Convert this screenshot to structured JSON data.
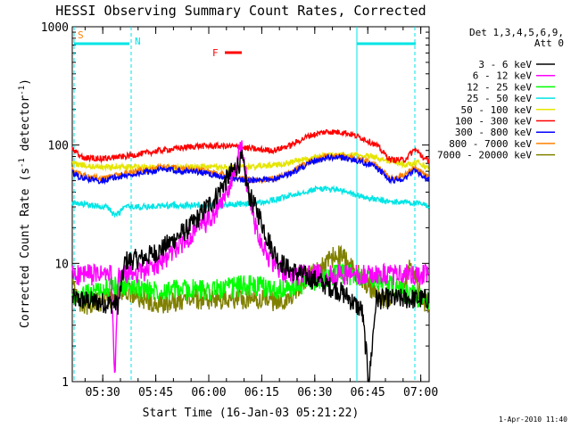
{
  "chart_data": {
    "type": "line",
    "title": "HESSI Observing Summary Count Rates, Corrected",
    "xlabel": "Start Time (16-Jan-03 05:21:22)",
    "ylabel_main": "Corrected Count Rate (s",
    "ylabel_sup1": "-1",
    "ylabel_mid": " detector",
    "ylabel_sup2": "-1",
    "ylabel_end": ")",
    "yscale": "log",
    "ylim": [
      1,
      1000
    ],
    "xlim_min": [
      0,
      101
    ],
    "x_tick_minutes": [
      8.63,
      23.63,
      38.63,
      53.63,
      68.63,
      83.63,
      98.63
    ],
    "x_tick_labels": [
      "05:30",
      "05:45",
      "06:00",
      "06:15",
      "06:30",
      "06:45",
      "07:00"
    ],
    "y_tick_values": [
      1,
      10,
      100,
      1000
    ],
    "y_tick_labels": [
      "1",
      "10",
      "100",
      "1000"
    ],
    "legend_header": [
      "Det 1,3,4,5,6,9,",
      "Att 0"
    ],
    "legend_position": "right",
    "footer": "1-Apr-2010 11:40",
    "flags": [
      {
        "label": "S",
        "color": "#ff8000"
      },
      {
        "label": "N",
        "color": "#00e5e5"
      },
      {
        "label": "F",
        "color": "#ff0000"
      }
    ],
    "flag_bar_color": "#00e5e5",
    "series": [
      {
        "name": "3 - 6 keV",
        "color": "#000000",
        "x": [
          0,
          13,
          15,
          20,
          25,
          30,
          33,
          36,
          38,
          40,
          42,
          45,
          48,
          50,
          53,
          55,
          58,
          61,
          65,
          70,
          72,
          75,
          78,
          80,
          82,
          84,
          86,
          90,
          95,
          100
        ],
        "y": [
          5,
          4.5,
          10.5,
          11,
          13,
          17,
          20,
          25,
          30,
          34,
          43,
          58,
          75,
          38,
          25,
          17,
          11,
          9,
          8,
          7,
          6.5,
          6,
          5.2,
          4.5,
          4,
          1,
          5,
          5,
          5,
          5
        ]
      },
      {
        "name": "6 - 12 keV",
        "color": "#ff00ff",
        "x": [
          0,
          11,
          12,
          13,
          14,
          20,
          25,
          30,
          35,
          40,
          43,
          46,
          48,
          50,
          52,
          55,
          58,
          61,
          65,
          70,
          75,
          80,
          85,
          90,
          95,
          100
        ],
        "y": [
          8,
          8,
          1,
          7.5,
          8,
          8.5,
          10,
          14,
          19,
          25,
          35,
          60,
          100,
          36,
          20,
          12,
          9,
          8,
          8,
          8,
          8,
          8,
          8,
          8,
          8,
          8
        ]
      },
      {
        "name": "12 - 25 keV",
        "color": "#00ff00",
        "x": [
          0,
          10,
          15,
          20,
          30,
          40,
          45,
          48,
          50,
          55,
          60,
          65,
          70,
          75,
          80,
          85,
          90,
          95,
          100
        ],
        "y": [
          5,
          6.2,
          6.5,
          6,
          6,
          6,
          6.2,
          6.5,
          6.5,
          6.2,
          6,
          6.5,
          7.5,
          8,
          8,
          7.5,
          6.5,
          5.5,
          5
        ]
      },
      {
        "name": "25 - 50 keV",
        "color": "#00e5e5",
        "x": [
          0,
          5,
          10,
          12,
          15,
          20,
          30,
          40,
          50,
          55,
          60,
          65,
          70,
          75,
          80,
          85,
          90,
          95,
          100
        ],
        "y": [
          32,
          31,
          30,
          25,
          30,
          30,
          31,
          31,
          32,
          33,
          36,
          40,
          43,
          42,
          38,
          35,
          33,
          33,
          31
        ]
      },
      {
        "name": "50 - 100 keV",
        "color": "#e5e500",
        "x": [
          0,
          5,
          10,
          20,
          30,
          40,
          50,
          55,
          60,
          65,
          70,
          75,
          80,
          85,
          90,
          95,
          98,
          100
        ],
        "y": [
          70,
          66,
          65,
          65,
          65,
          65,
          65,
          67,
          70,
          75,
          80,
          82,
          82,
          80,
          73,
          68,
          72,
          65
        ]
      },
      {
        "name": "100 - 300 keV",
        "color": "#ff0000",
        "x": [
          0,
          3,
          8,
          15,
          25,
          35,
          45,
          52,
          57,
          62,
          67,
          72,
          77,
          82,
          86,
          90,
          94,
          97,
          100
        ],
        "y": [
          92,
          78,
          77,
          80,
          90,
          98,
          98,
          92,
          90,
          100,
          120,
          130,
          128,
          115,
          100,
          75,
          75,
          92,
          75
        ]
      },
      {
        "name": "300 - 800 keV",
        "color": "#0000ff",
        "x": [
          0,
          3,
          8,
          15,
          25,
          35,
          45,
          52,
          57,
          62,
          67,
          72,
          77,
          82,
          86,
          90,
          94,
          97,
          100
        ],
        "y": [
          58,
          52,
          50,
          55,
          62,
          60,
          52,
          50,
          52,
          58,
          70,
          78,
          78,
          72,
          65,
          50,
          52,
          62,
          52
        ]
      },
      {
        "name": "800 - 7000 keV",
        "color": "#ff8000",
        "x": [
          0,
          3,
          8,
          15,
          25,
          35,
          45,
          52,
          57,
          62,
          67,
          72,
          77,
          82,
          86,
          90,
          94,
          97,
          100
        ],
        "y": [
          62,
          55,
          52,
          58,
          65,
          62,
          55,
          50,
          52,
          60,
          72,
          80,
          80,
          75,
          68,
          52,
          55,
          65,
          55
        ]
      },
      {
        "name": "7000 - 20000 keV",
        "color": "#808000",
        "x": [
          0,
          1,
          3,
          5,
          10,
          15,
          20,
          25,
          30,
          35,
          40,
          45,
          50,
          55,
          60,
          65,
          70,
          75,
          78,
          80,
          85,
          88,
          93,
          96,
          98,
          100
        ],
        "y": [
          9,
          5,
          4.5,
          4.5,
          4.8,
          6,
          5,
          4.5,
          4.8,
          5,
          5,
          5,
          5,
          5,
          4.5,
          7,
          9,
          12,
          10,
          8.5,
          6,
          5,
          6,
          10,
          6,
          4.5
        ]
      }
    ]
  }
}
